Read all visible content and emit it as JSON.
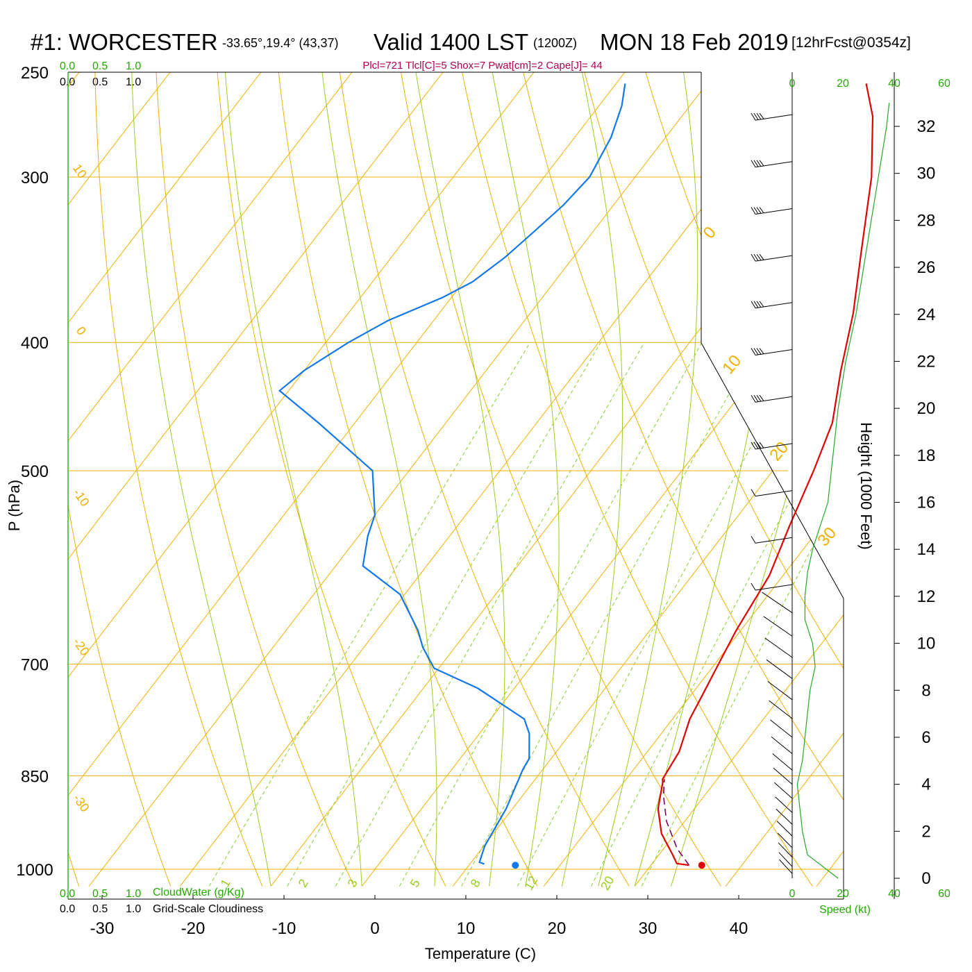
{
  "header": {
    "station": "#1: WORCESTER",
    "coords": "-33.65°,19.4° (43,37)",
    "valid": "Valid 1400 LST",
    "utc": "(1200Z)",
    "date": "MON 18 Feb 2019",
    "forecast": "[12hrFcst@0354z]",
    "params": "Plcl=721 Tlcl[C]=5 Shox=7 Pwat[cm]=2 Cape[J]= 44"
  },
  "scales": {
    "cloudwater_top": [
      "0.0",
      "0.5",
      "1.0"
    ],
    "cloudiness_top": [
      "0.0",
      "0.5",
      "1.0"
    ],
    "cloudwater_bottom": [
      "0.0",
      "0.5",
      "1.0"
    ],
    "cloudwater_label": "CloudWater (g/Kg)",
    "cloudiness_bottom": [
      "0.0",
      "0.5",
      "1.0"
    ],
    "cloudiness_label": "Grid-Scale Cloudiness",
    "speed_ticks": [
      "0",
      "20",
      "40",
      "60"
    ],
    "speed_label": "Speed (kt)"
  },
  "axes": {
    "pressure_label": "P (hPa)",
    "pressure_ticks": [
      "250",
      "300",
      "400",
      "500",
      "700",
      "850",
      "1000"
    ],
    "temperature_label": "Temperature (C)",
    "temperature_ticks": [
      "-30",
      "-20",
      "-10",
      "0",
      "10",
      "20",
      "30",
      "40"
    ],
    "height_label": "Height (1000 Feet)",
    "height_ticks": [
      "32",
      "30",
      "28",
      "26",
      "24",
      "22",
      "20",
      "18",
      "16",
      "14",
      "12",
      "10",
      "8",
      "6",
      "4",
      "2",
      "0"
    ]
  },
  "isotherm_labels": [
    "0",
    "10",
    "20",
    "30"
  ],
  "dry_adiabat_labels": [
    "10",
    "0",
    "-10",
    "-20",
    "-30"
  ],
  "mixing_ratio_labels": [
    "1",
    "2",
    "3",
    "5",
    "8",
    "12",
    "20"
  ],
  "colors": {
    "temperature": "#e00000",
    "dewpoint": "#1177ee",
    "parcel": "#800060",
    "isotherm": "#f0b000",
    "moist_adiabat": "#9bcc22",
    "mixing_ratio": "#88cc22",
    "speed_profile": "#22aa22",
    "params": "#b0004f"
  },
  "chart_data": {
    "type": "skew-t",
    "title": "#1: WORCESTER -33.65°,19.4° (43,37) Valid 1400 LST (1200Z) MON 18 Feb 2019 [12hrFcst@0354z]",
    "xlabel": "Temperature (C)",
    "ylabel": "P (hPa)",
    "xlim": [
      -35,
      45
    ],
    "ylim": [
      1030,
      250
    ],
    "y_scale": "log",
    "skew": "isotherms slanted up to the right",
    "series": [
      {
        "name": "Temperature",
        "points": [
          [
            34.2,
            993
          ],
          [
            32.7,
            990
          ],
          [
            31.5,
            975
          ],
          [
            28.5,
            940
          ],
          [
            26.0,
            900
          ],
          [
            24.3,
            860
          ],
          [
            24.0,
            855
          ],
          [
            23.5,
            815
          ],
          [
            21.9,
            770
          ],
          [
            21.4,
            745
          ],
          [
            20.3,
            695
          ],
          [
            19.5,
            660
          ],
          [
            18.5,
            600
          ],
          [
            16.5,
            550
          ],
          [
            14.5,
            500
          ],
          [
            12.5,
            460
          ],
          [
            9.0,
            420
          ],
          [
            5.5,
            380
          ],
          [
            1.0,
            340
          ],
          [
            -4.0,
            300
          ],
          [
            -9.0,
            270
          ],
          [
            -12.5,
            255
          ]
        ]
      },
      {
        "name": "Dewpoint",
        "points": [
          [
            11.6,
            991
          ],
          [
            10.9,
            988
          ],
          [
            10.1,
            960
          ],
          [
            9.3,
            900
          ],
          [
            7.8,
            840
          ],
          [
            7.6,
            825
          ],
          [
            5.5,
            790
          ],
          [
            3.7,
            770
          ],
          [
            -4.0,
            730
          ],
          [
            -10.5,
            705
          ],
          [
            -13.5,
            680
          ],
          [
            -15.5,
            660
          ],
          [
            -20.5,
            620
          ],
          [
            -27.0,
            590
          ],
          [
            -29.0,
            560
          ],
          [
            -30.0,
            540
          ],
          [
            -34.0,
            500
          ],
          [
            -44.0,
            460
          ],
          [
            -51.0,
            435
          ],
          [
            -50.0,
            420
          ],
          [
            -47.5,
            400
          ],
          [
            -45.0,
            385
          ],
          [
            -41.0,
            370
          ],
          [
            -39.0,
            360
          ],
          [
            -37.5,
            345
          ],
          [
            -36.5,
            330
          ],
          [
            -35.5,
            315
          ],
          [
            -35.0,
            300
          ],
          [
            -36.0,
            280
          ],
          [
            -37.5,
            265
          ],
          [
            -39.0,
            255
          ]
        ]
      },
      {
        "name": "Parcel",
        "style": "dashed",
        "points": [
          [
            34.2,
            993
          ],
          [
            31.5,
            965
          ],
          [
            28.0,
            920
          ],
          [
            25.5,
            880
          ],
          [
            24.2,
            855
          ]
        ]
      }
    ],
    "surface_markers": [
      {
        "kind": "temperature",
        "t": 35.6,
        "p": 993
      },
      {
        "kind": "dewpoint",
        "t": 15.1,
        "p": 993
      }
    ],
    "wind_speed_profile_kt": [
      [
        0,
        18
      ],
      [
        1000,
        6
      ],
      [
        2000,
        4
      ],
      [
        3000,
        3
      ],
      [
        4000,
        2
      ],
      [
        5000,
        4
      ],
      [
        6000,
        5
      ],
      [
        7000,
        6
      ],
      [
        8000,
        7
      ],
      [
        9000,
        9
      ],
      [
        10000,
        8
      ],
      [
        11000,
        5
      ],
      [
        12000,
        5
      ],
      [
        13000,
        6
      ],
      [
        14000,
        8
      ],
      [
        15000,
        11
      ],
      [
        16000,
        14
      ],
      [
        17000,
        15
      ],
      [
        18000,
        16
      ],
      [
        19000,
        17
      ],
      [
        20000,
        18
      ],
      [
        22000,
        21
      ],
      [
        24000,
        25
      ],
      [
        26000,
        28
      ],
      [
        28000,
        31
      ],
      [
        30000,
        34
      ],
      [
        32000,
        37
      ],
      [
        33000,
        38
      ]
    ],
    "wind_barbs": {
      "column_x_label": "0",
      "levels_1000ft": [
        32.5,
        30.5,
        28.5,
        26.5,
        24.5,
        22.5,
        20.5,
        18.5,
        16.5,
        14.5,
        12.5,
        11.3,
        10.3,
        9.4,
        8.5,
        7.6,
        6.8,
        6.0,
        5.3,
        4.6,
        4.0,
        3.4,
        2.8,
        2.3,
        1.8,
        1.3,
        0.9,
        0.5,
        0.2
      ]
    }
  }
}
